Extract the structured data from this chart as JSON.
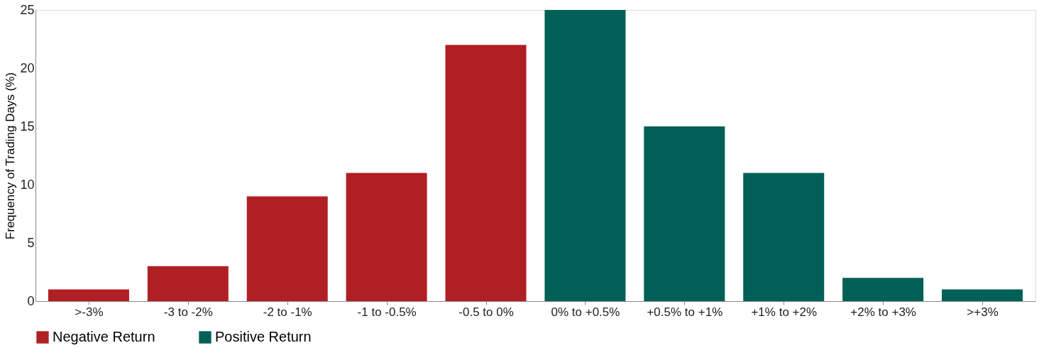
{
  "chart_data": {
    "type": "bar",
    "ylabel": "Frequency of Trading Days (%)",
    "categories": [
      ">-3%",
      "-3 to -2%",
      "-2 to -1%",
      "-1 to -0.5%",
      "-0.5 to 0%",
      "0% to +0.5%",
      "+0.5% to +1%",
      "+1% to +2%",
      "+2% to +3%",
      ">+3%"
    ],
    "series": [
      {
        "name": "Negative Return",
        "color": "#b01f24",
        "values": [
          1,
          3,
          9,
          11,
          22,
          null,
          null,
          null,
          null,
          null
        ]
      },
      {
        "name": "Positive Return",
        "color": "#005f56",
        "values": [
          null,
          null,
          null,
          null,
          null,
          25,
          15,
          11,
          2,
          1
        ]
      }
    ],
    "ylim": [
      0,
      25
    ],
    "yticks": [
      0,
      5,
      10,
      15,
      20,
      25
    ],
    "grid": false,
    "legend": "bottom"
  }
}
